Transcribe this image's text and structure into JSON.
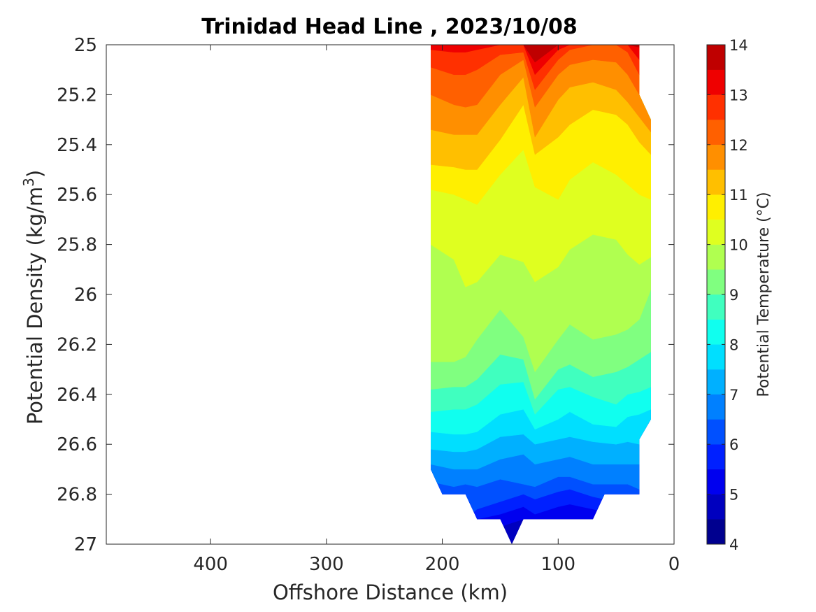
{
  "chart_data": {
    "type": "contour",
    "title": "Trinidad Head Line , 2023/10/08",
    "xlabel": "Offshore Distance (km)",
    "ylabel_base": "Potential Density (kg/m",
    "ylabel_sup": "3",
    "ylabel_close": ")",
    "colorbar_label": "Potential Temperature (°C)",
    "x_reversed": true,
    "xlim": [
      490,
      0
    ],
    "ylim": [
      25,
      27
    ],
    "y_reversed": true,
    "x_ticks": [
      {
        "value": 400,
        "label": "400"
      },
      {
        "value": 300,
        "label": "300"
      },
      {
        "value": 200,
        "label": "200"
      },
      {
        "value": 100,
        "label": "100"
      },
      {
        "value": 0,
        "label": "0"
      }
    ],
    "y_ticks": [
      {
        "value": 25,
        "label": "25"
      },
      {
        "value": 25.2,
        "label": "25.2"
      },
      {
        "value": 25.4,
        "label": "25.4"
      },
      {
        "value": 25.6,
        "label": "25.6"
      },
      {
        "value": 25.8,
        "label": "25.8"
      },
      {
        "value": 26,
        "label": "26"
      },
      {
        "value": 26.2,
        "label": "26.2"
      },
      {
        "value": 26.4,
        "label": "26.4"
      },
      {
        "value": 26.6,
        "label": "26.6"
      },
      {
        "value": 26.8,
        "label": "26.8"
      },
      {
        "value": 27,
        "label": "27"
      }
    ],
    "colorbar_ticks": [
      {
        "value": 4,
        "label": "4"
      },
      {
        "value": 5,
        "label": "5"
      },
      {
        "value": 6,
        "label": "6"
      },
      {
        "value": 7,
        "label": "7"
      },
      {
        "value": 8,
        "label": "8"
      },
      {
        "value": 9,
        "label": "9"
      },
      {
        "value": 10,
        "label": "10"
      },
      {
        "value": 11,
        "label": "11"
      },
      {
        "value": 12,
        "label": "12"
      },
      {
        "value": 13,
        "label": "13"
      },
      {
        "value": 14,
        "label": "14"
      }
    ],
    "contour_levels": [
      4,
      4.5,
      5,
      5.5,
      6,
      6.5,
      7,
      7.5,
      8,
      8.5,
      9,
      9.5,
      10,
      10.5,
      11,
      11.5,
      12,
      12.5,
      13,
      13.5,
      14
    ],
    "colormap": [
      "#00008f",
      "#0000bf",
      "#0000ef",
      "#0020ff",
      "#0050ff",
      "#0080ff",
      "#00b0ff",
      "#00dfff",
      "#10ffef",
      "#40ffbf",
      "#80ff80",
      "#b0ff50",
      "#dfff20",
      "#ffef00",
      "#ffbf00",
      "#ff8f00",
      "#ff6000",
      "#ff3000",
      "#ef0000",
      "#bf0000"
    ],
    "grid": false,
    "data_extent": {
      "x_range_km": [
        210,
        20
      ],
      "sigma_range": [
        25,
        27
      ]
    }
  }
}
